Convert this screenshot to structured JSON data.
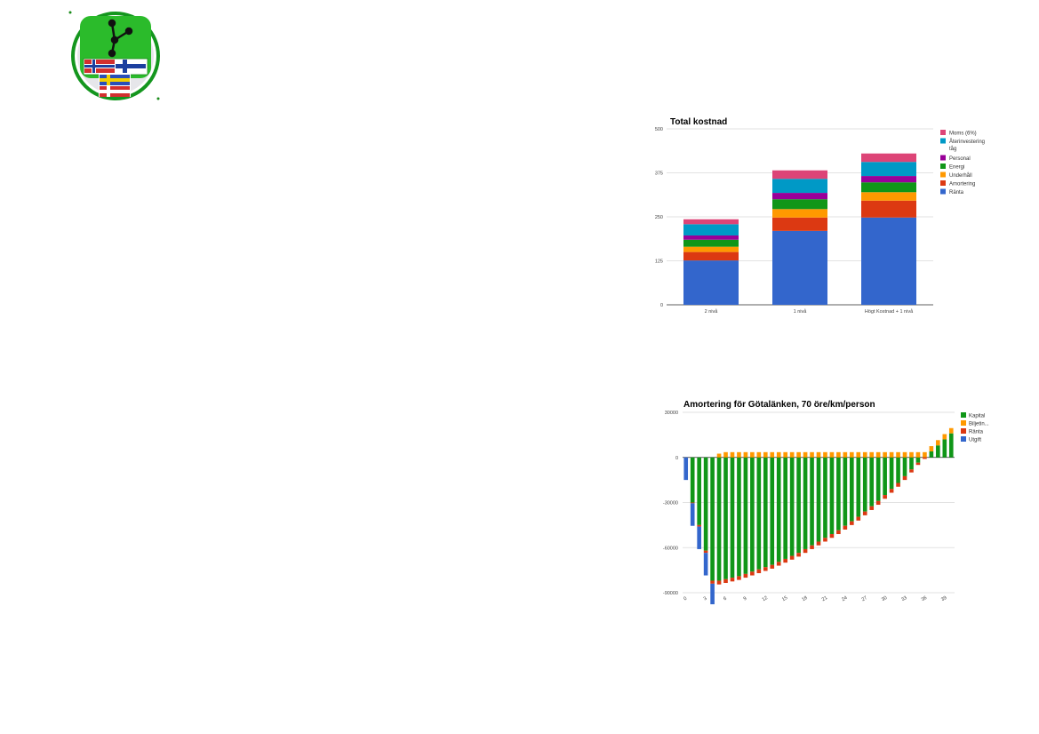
{
  "logo": {
    "name": "logo-emblem"
  },
  "charts": [
    {
      "type": "bar",
      "stacked": true,
      "title": "Total kostnad",
      "xlabel": "",
      "ylabel": "",
      "ylim": [
        0,
        500
      ],
      "yticks": [
        0,
        125,
        250,
        375,
        500
      ],
      "grid": true,
      "legend_position": "right",
      "categories": [
        "2 nivå",
        "1 nivå",
        "Högt Kostnad + 1 nivå"
      ],
      "series": [
        {
          "name": "Ränta",
          "color": "#3366cc",
          "values": [
            126,
            210,
            248
          ]
        },
        {
          "name": "Amortering",
          "color": "#dc3912",
          "values": [
            24,
            38,
            48
          ]
        },
        {
          "name": "Underhåll",
          "color": "#ff9900",
          "values": [
            15,
            24,
            24
          ]
        },
        {
          "name": "Energi",
          "color": "#109618",
          "values": [
            20,
            28,
            28
          ]
        },
        {
          "name": "Personal",
          "color": "#990099",
          "values": [
            12,
            18,
            18
          ]
        },
        {
          "name": "Återinvestering tåg",
          "color": "#0099c6",
          "values": [
            32,
            40,
            40
          ]
        },
        {
          "name": "Moms (6%)",
          "color": "#dd4477",
          "values": [
            14,
            24,
            24
          ]
        }
      ]
    },
    {
      "type": "bar",
      "stacked": true,
      "title": "Amortering för Götalänken, 70 öre/km/person",
      "xlabel": "",
      "ylabel": "",
      "ylim": [
        -90000,
        30000
      ],
      "yticks": [
        -90000,
        -60000,
        -30000,
        0,
        30000
      ],
      "xticks": [
        0,
        3,
        6,
        9,
        12,
        15,
        18,
        21,
        24,
        27,
        30,
        33,
        36,
        39
      ],
      "grid": true,
      "legend_position": "right",
      "x": [
        0,
        1,
        2,
        3,
        4,
        5,
        6,
        7,
        8,
        9,
        10,
        11,
        12,
        13,
        14,
        15,
        16,
        17,
        18,
        19,
        20,
        21,
        22,
        23,
        24,
        25,
        26,
        27,
        28,
        29,
        30,
        31,
        32,
        33,
        34,
        35,
        36,
        37,
        38,
        39,
        40
      ],
      "series": [
        {
          "name": "Kapital",
          "color": "#109618",
          "values": [
            0,
            -30000,
            -45000,
            -62000,
            -82000,
            -82000,
            -81000,
            -80000,
            -79000,
            -77500,
            -76000,
            -74500,
            -73000,
            -71500,
            -69500,
            -67500,
            -65500,
            -63500,
            -61000,
            -58500,
            -56000,
            -53500,
            -51000,
            -48500,
            -45500,
            -42500,
            -39500,
            -36000,
            -32500,
            -29000,
            -25000,
            -21000,
            -17000,
            -12500,
            -8000,
            -3500,
            0,
            4000,
            8000,
            12000,
            16000
          ]
        },
        {
          "name": "Biljetin...",
          "color": "#ff9900",
          "values": [
            0,
            0,
            0,
            0,
            0,
            2500,
            3500,
            3500,
            3500,
            3500,
            3500,
            3500,
            3500,
            3500,
            3500,
            3500,
            3500,
            3500,
            3500,
            3500,
            3500,
            3500,
            3500,
            3500,
            3500,
            3500,
            3500,
            3500,
            3500,
            3500,
            3500,
            3500,
            3500,
            3500,
            3500,
            3500,
            3500,
            3500,
            3500,
            3500,
            3500
          ]
        },
        {
          "name": "Ränta",
          "color": "#dc3912",
          "values": [
            0,
            -500,
            -1000,
            -1500,
            -2000,
            -2500,
            -2500,
            -2500,
            -2500,
            -2500,
            -2500,
            -2500,
            -2500,
            -2500,
            -2500,
            -2500,
            -2500,
            -2500,
            -2500,
            -2500,
            -2500,
            -2500,
            -2500,
            -2500,
            -2500,
            -2500,
            -2500,
            -2500,
            -2500,
            -2500,
            -2500,
            -2500,
            -2500,
            -2500,
            -2000,
            -1500,
            -1000,
            0,
            0,
            0,
            0
          ]
        },
        {
          "name": "Utgift",
          "color": "#3366cc",
          "values": [
            -15000,
            -15000,
            -15000,
            -15000,
            -20000,
            0,
            0,
            0,
            0,
            0,
            0,
            0,
            0,
            0,
            0,
            0,
            0,
            0,
            0,
            0,
            0,
            0,
            0,
            0,
            0,
            0,
            0,
            0,
            0,
            0,
            0,
            0,
            0,
            0,
            0,
            0,
            0,
            0,
            0,
            0,
            0
          ]
        }
      ]
    }
  ]
}
